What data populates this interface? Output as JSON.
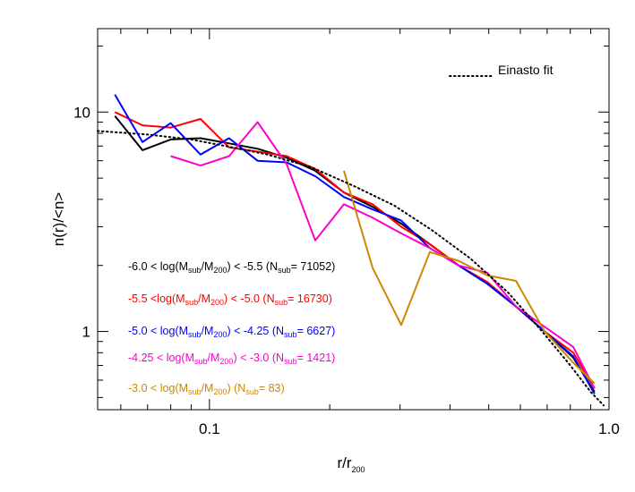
{
  "chart_data": {
    "type": "line",
    "xlabel": "r/r",
    "xlabel_sub": "200",
    "ylabel": "n(r)/<n>",
    "xscale": "log",
    "yscale": "log",
    "xlim": [
      0.0525,
      1.0
    ],
    "ylim": [
      0.44,
      24.0
    ],
    "x_ticks": [
      {
        "value": 0.1,
        "label": "0.1"
      },
      {
        "value": 1.0,
        "label": "1.0"
      }
    ],
    "y_ticks": [
      {
        "value": 1,
        "label": "1"
      },
      {
        "value": 10,
        "label": "10"
      }
    ],
    "legend_position": "bottom-left",
    "series": [
      {
        "color": "#000000",
        "legend": {
          "pre": "-6.0 < log(M",
          "s1": "sub",
          "mid": "/M",
          "s2": "200",
          "post": ") < -5.5 (N",
          "s3": "sub",
          "end": "= 71052)"
        },
        "x": [
          0.058,
          0.068,
          0.08,
          0.095,
          0.112,
          0.132,
          0.156,
          0.184,
          0.217,
          0.256,
          0.302,
          0.356,
          0.42,
          0.496,
          0.585,
          0.69,
          0.814,
          0.92
        ],
        "y": [
          9.6,
          6.7,
          7.5,
          7.6,
          7.2,
          6.8,
          6.2,
          5.4,
          4.3,
          3.7,
          3.1,
          2.5,
          2.0,
          1.65,
          1.3,
          1.0,
          0.76,
          0.53
        ]
      },
      {
        "color": "#ff0000",
        "legend": {
          "pre": "-5.5 <log(M",
          "s1": "sub",
          "mid": "/M",
          "s2": "200",
          "post": ") < -5.0 (N",
          "s3": "sub",
          "end": "= 16730)"
        },
        "x": [
          0.058,
          0.068,
          0.08,
          0.095,
          0.112,
          0.132,
          0.156,
          0.184,
          0.217,
          0.256,
          0.302,
          0.356,
          0.42,
          0.496,
          0.585,
          0.69,
          0.814,
          0.92
        ],
        "y": [
          10.0,
          8.7,
          8.5,
          9.3,
          6.9,
          6.6,
          6.3,
          5.5,
          4.3,
          3.8,
          3.0,
          2.5,
          2.0,
          1.68,
          1.3,
          1.0,
          0.8,
          0.55
        ]
      },
      {
        "color": "#0000ff",
        "legend": {
          "pre": "-5.0 < log(M",
          "s1": "sub",
          "mid": "/M",
          "s2": "200",
          "post": ") < -4.25 (N",
          "s3": "sub",
          "end": "= 6627)"
        },
        "x": [
          0.058,
          0.068,
          0.08,
          0.095,
          0.112,
          0.132,
          0.156,
          0.184,
          0.217,
          0.256,
          0.302,
          0.356,
          0.42,
          0.496,
          0.585,
          0.69,
          0.814,
          0.92
        ],
        "y": [
          12.0,
          7.3,
          8.9,
          6.4,
          7.6,
          6.0,
          5.9,
          5.1,
          4.1,
          3.6,
          3.2,
          2.4,
          2.0,
          1.65,
          1.3,
          1.0,
          0.77,
          0.52
        ]
      },
      {
        "color": "#ff00cc",
        "legend": {
          "pre": "-4.25 < log(M",
          "s1": "sub",
          "mid": "/M",
          "s2": "200",
          "post": ") < -3.0 (N",
          "s3": "sub",
          "end": "= 1421)"
        },
        "x": [
          0.08,
          0.095,
          0.112,
          0.132,
          0.156,
          0.184,
          0.217,
          0.256,
          0.302,
          0.356,
          0.42,
          0.496,
          0.585,
          0.69,
          0.814,
          0.92
        ],
        "y": [
          6.3,
          5.7,
          6.3,
          9.0,
          5.8,
          2.6,
          3.8,
          3.3,
          2.8,
          2.4,
          2.0,
          1.85,
          1.3,
          1.05,
          0.85,
          0.55
        ]
      },
      {
        "color": "#cc8800",
        "legend": {
          "pre": "-3.0 < log(M",
          "s1": "sub",
          "mid": "/M",
          "s2": "200",
          "post": ") (N",
          "s3": "sub",
          "end": "= 83)"
        },
        "x": [
          0.217,
          0.256,
          0.302,
          0.356,
          0.42,
          0.496,
          0.585,
          0.69,
          0.814,
          0.92
        ],
        "y": [
          5.4,
          1.95,
          1.07,
          2.3,
          2.1,
          1.8,
          1.7,
          1.0,
          0.72,
          0.58
        ]
      }
    ],
    "fit": {
      "label": "Einasto fit",
      "x": [
        0.0525,
        0.07,
        0.09,
        0.11,
        0.14,
        0.18,
        0.23,
        0.29,
        0.36,
        0.45,
        0.56,
        0.68,
        0.8,
        0.9,
        0.97
      ],
      "y": [
        8.2,
        7.9,
        7.5,
        7.0,
        6.4,
        5.6,
        4.6,
        3.75,
        2.9,
        2.15,
        1.5,
        1.0,
        0.7,
        0.53,
        0.46
      ]
    }
  }
}
